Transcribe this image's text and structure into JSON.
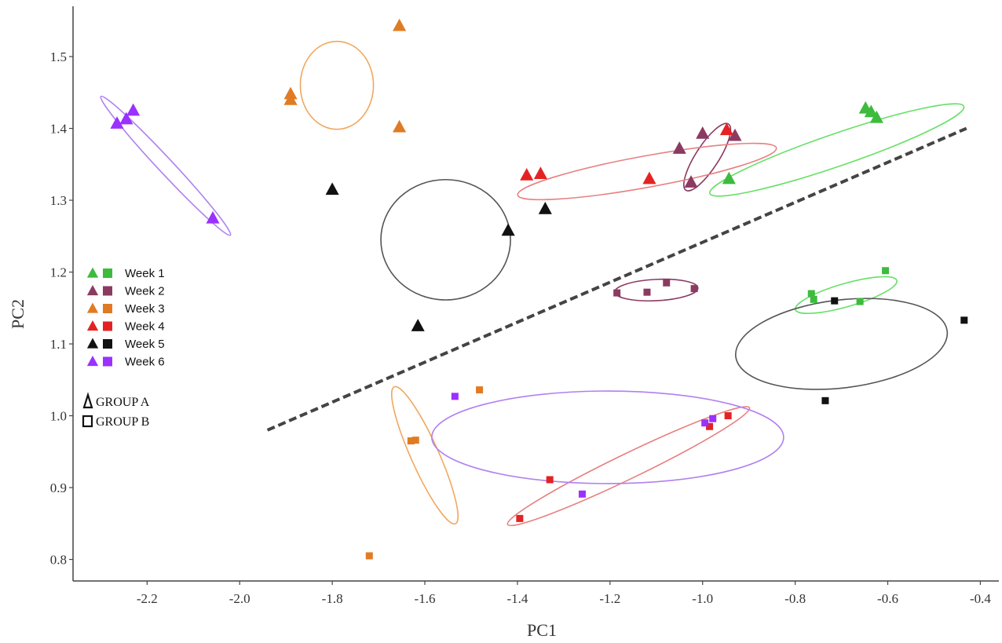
{
  "chart_data": {
    "type": "scatter",
    "xlabel": "PC1",
    "ylabel": "PC2",
    "xlim": [
      -2.36,
      -0.36
    ],
    "ylim": [
      0.77,
      1.57
    ],
    "xticks": [
      "-2.2",
      "-2.0",
      "-1.8",
      "-1.6",
      "-1.4",
      "-1.2",
      "-1.0",
      "-0.8",
      "-0.6",
      "-0.4"
    ],
    "yticks": [
      "0.8",
      "0.9",
      "1.0",
      "1.1",
      "1.2",
      "1.3",
      "1.4",
      "1.5"
    ],
    "grid": false,
    "legend": {
      "placement": "left",
      "entries": [
        "Week 1",
        "Week 2",
        "Week 3",
        "Week 4",
        "Week 5",
        "Week 6"
      ],
      "groups": [
        "GROUP A",
        "GROUP B"
      ]
    },
    "colors": {
      "Week 1": "#3dbb3d",
      "Week 2": "#8b3a62",
      "Week 3": "#e07b24",
      "Week 4": "#e52222",
      "Week 5": "#111111",
      "Week 6": "#9b30ff"
    },
    "ellipse_colors": {
      "Week 1": "#66e066",
      "Week 2": "#8b3a62",
      "Week 3": "#f0a860",
      "Week 4": "#e88080",
      "Week 5": "#555555",
      "Week 6": "#b080f0"
    },
    "separator": {
      "style": "dashed",
      "from": [
        -1.94,
        0.98
      ],
      "to": [
        -0.43,
        1.4
      ]
    },
    "series": [
      {
        "week": "Week 1",
        "group": "GROUP A",
        "marker": "triangle",
        "points": [
          [
            -0.943,
            1.33
          ],
          [
            -0.648,
            1.428
          ],
          [
            -0.636,
            1.423
          ],
          [
            -0.624,
            1.415
          ]
        ],
        "ellipse": {
          "cx": -0.71,
          "cy": 1.37,
          "rx": 0.29,
          "ry": 0.035,
          "angle": 0.33
        }
      },
      {
        "week": "Week 2",
        "group": "GROUP A",
        "marker": "triangle",
        "points": [
          [
            -1.05,
            1.372
          ],
          [
            -1.0,
            1.393
          ],
          [
            -1.025,
            1.325
          ],
          [
            -0.93,
            1.39
          ]
        ],
        "ellipse": {
          "cx": -0.99,
          "cy": 1.36,
          "rx": 0.085,
          "ry": 0.025,
          "angle": 1.0
        }
      },
      {
        "week": "Week 3",
        "group": "GROUP A",
        "marker": "triangle",
        "points": [
          [
            -1.655,
            1.543
          ],
          [
            -1.89,
            1.448
          ],
          [
            -1.89,
            1.44
          ],
          [
            -1.655,
            1.402
          ]
        ],
        "ellipse": {
          "cx": -1.79,
          "cy": 1.46,
          "rx": 0.079,
          "ry": 0.095,
          "angle": 0.0
        }
      },
      {
        "week": "Week 4",
        "group": "GROUP A",
        "marker": "triangle",
        "points": [
          [
            -1.38,
            1.335
          ],
          [
            -1.35,
            1.337
          ],
          [
            -1.115,
            1.33
          ],
          [
            -0.948,
            1.398
          ]
        ],
        "ellipse": {
          "cx": -1.12,
          "cy": 1.34,
          "rx": 0.284,
          "ry": 0.034,
          "angle": 0.18
        }
      },
      {
        "week": "Week 5",
        "group": "GROUP A",
        "marker": "triangle",
        "points": [
          [
            -1.8,
            1.315
          ],
          [
            -1.42,
            1.258
          ],
          [
            -1.34,
            1.288
          ],
          [
            -1.615,
            1.125
          ]
        ],
        "ellipse": {
          "cx": -1.555,
          "cy": 1.245,
          "rx": 0.14,
          "ry": 0.13,
          "angle": 0.0
        }
      },
      {
        "week": "Week 6",
        "group": "GROUP A",
        "marker": "triangle",
        "points": [
          [
            -2.265,
            1.407
          ],
          [
            -2.245,
            1.413
          ],
          [
            -2.23,
            1.425
          ],
          [
            -2.058,
            1.275
          ]
        ],
        "ellipse": {
          "cx": -2.16,
          "cy": 1.348,
          "rx": 0.205,
          "ry": 0.016,
          "angle": -0.82
        }
      },
      {
        "week": "Week 1",
        "group": "GROUP B",
        "marker": "square",
        "points": [
          [
            -0.765,
            1.17
          ],
          [
            -0.76,
            1.162
          ],
          [
            -0.66,
            1.159
          ],
          [
            -0.605,
            1.202
          ]
        ],
        "ellipse": {
          "cx": -0.69,
          "cy": 1.168,
          "rx": 0.114,
          "ry": 0.025,
          "angle": 0.28
        }
      },
      {
        "week": "Week 2",
        "group": "GROUP B",
        "marker": "square",
        "points": [
          [
            -1.185,
            1.171
          ],
          [
            -1.12,
            1.172
          ],
          [
            -1.078,
            1.185
          ],
          [
            -1.018,
            1.177
          ]
        ],
        "ellipse": {
          "cx": -1.1,
          "cy": 1.175,
          "rx": 0.09,
          "ry": 0.023,
          "angle": 0.05
        }
      },
      {
        "week": "Week 3",
        "group": "GROUP B",
        "marker": "square",
        "points": [
          [
            -1.482,
            1.036
          ],
          [
            -1.63,
            0.965
          ],
          [
            -1.62,
            0.966
          ],
          [
            -1.72,
            0.805
          ]
        ],
        "ellipse": {
          "cx": -1.6,
          "cy": 0.945,
          "rx": 0.162,
          "ry": 0.03,
          "angle": -1.15
        }
      },
      {
        "week": "Week 4",
        "group": "GROUP B",
        "marker": "square",
        "points": [
          [
            -1.33,
            0.911
          ],
          [
            -1.395,
            0.857
          ],
          [
            -0.985,
            0.985
          ],
          [
            -0.945,
            1.0
          ]
        ],
        "ellipse": {
          "cx": -1.16,
          "cy": 0.93,
          "rx": 0.29,
          "ry": 0.027,
          "angle": 0.45
        }
      },
      {
        "week": "Week 5",
        "group": "GROUP B",
        "marker": "square",
        "points": [
          [
            -0.715,
            1.16
          ],
          [
            -0.435,
            1.133
          ],
          [
            -0.735,
            1.021
          ]
        ],
        "ellipse": {
          "cx": -0.7,
          "cy": 1.1,
          "rx": 0.23,
          "ry": 0.095,
          "angle": 0.12
        }
      },
      {
        "week": "Week 6",
        "group": "GROUP B",
        "marker": "square",
        "points": [
          [
            -1.535,
            1.027
          ],
          [
            -1.26,
            0.891
          ],
          [
            -0.995,
            0.99
          ],
          [
            -0.978,
            0.996
          ]
        ],
        "ellipse": {
          "cx": -1.205,
          "cy": 0.97,
          "rx": 0.38,
          "ry": 0.1,
          "angle": 0.0
        }
      }
    ]
  }
}
